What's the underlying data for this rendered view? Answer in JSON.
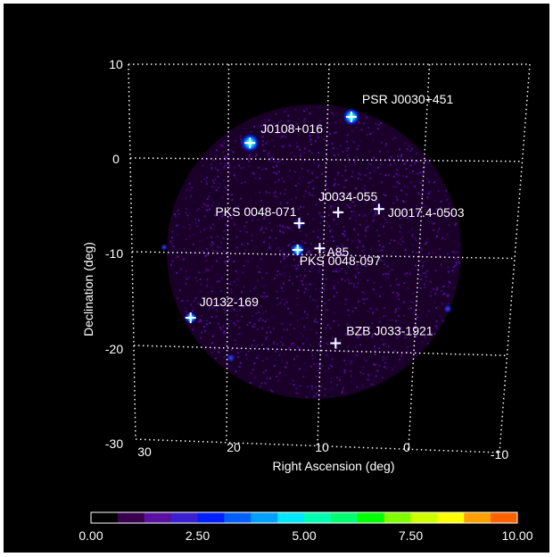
{
  "chart_data": {
    "type": "scatter",
    "title": "",
    "xlabel": "Right Ascension (deg)",
    "ylabel": "Declination (deg)",
    "xlim": [
      30,
      -10
    ],
    "ylim": [
      -30,
      10
    ],
    "x_ticks": [
      "30",
      "20",
      "10",
      "0",
      "-10"
    ],
    "y_ticks": [
      "10",
      "0",
      "-10",
      "-20",
      "-30"
    ],
    "grid": true,
    "sources": [
      {
        "name": "PSR J0030+451",
        "ra": 7.6,
        "dec": 4.5
      },
      {
        "name": "J0108+016",
        "ra": 17.8,
        "dec": 1.7
      },
      {
        "name": "J0034-055",
        "ra": 8.6,
        "dec": -5.5
      },
      {
        "name": "J0017.4-0503",
        "ra": 4.4,
        "dec": -5.1
      },
      {
        "name": "PKS 0048-071",
        "ra": 12.6,
        "dec": -6.7
      },
      {
        "name": "A85",
        "ra": 10.4,
        "dec": -9.3
      },
      {
        "name": "PKS 0048-097",
        "ra": 12.7,
        "dec": -9.5
      },
      {
        "name": "J0132-169",
        "ra": 23.9,
        "dec": -16.9
      },
      {
        "name": "BZB J033-1921",
        "ra": 8.4,
        "dec": -19.2
      }
    ],
    "colorbar": {
      "ticks": [
        "0.00",
        "2.50",
        "5.00",
        "7.50",
        "10.00"
      ],
      "range": [
        0,
        10
      ],
      "colors": [
        "#000000",
        "#3a0050",
        "#5a10a0",
        "#3a20d0",
        "#0020ff",
        "#0060ff",
        "#00a0ff",
        "#00e8ff",
        "#00ffb0",
        "#00ff70",
        "#00ff00",
        "#80ff00",
        "#d0ff00",
        "#ffff00",
        "#ffa000",
        "#ff6000"
      ]
    }
  }
}
